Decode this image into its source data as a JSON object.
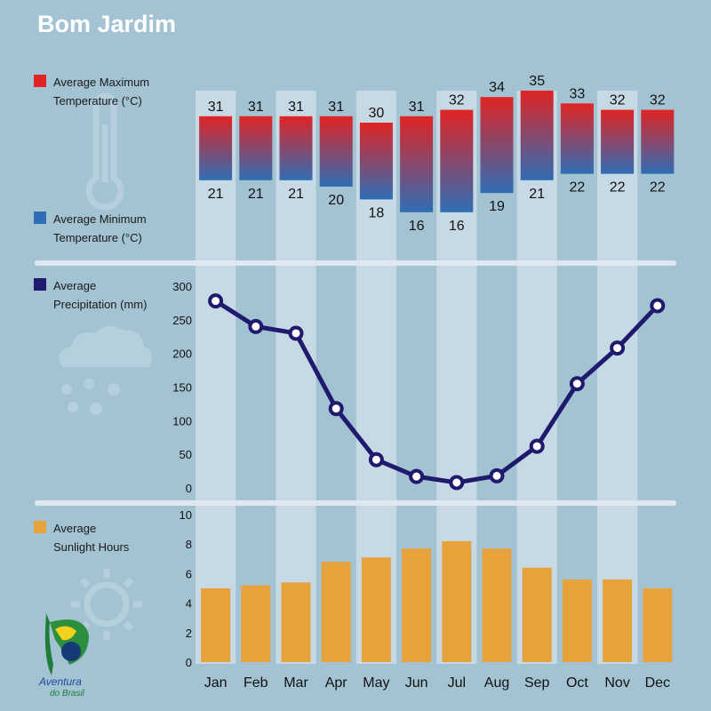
{
  "title": "Bom Jardim",
  "legend": {
    "max_label_1": "Average Maximum",
    "max_label_2": "Temperature (°C)",
    "min_label_1": "Average Minimum",
    "min_label_2": "Temperature (°C)",
    "precip_label_1": "Average",
    "precip_label_2": "Precipitation (mm)",
    "sun_label_1": "Average",
    "sun_label_2": "Sunlight Hours"
  },
  "logo": {
    "line1": "Aventura",
    "line2": "do Brasil"
  },
  "colors": {
    "background": "#a3c3d3",
    "column_band": "#c7d9e4",
    "max_temp": "#e02424",
    "min_temp": "#2f6db5",
    "precipitation": "#1f1a6e",
    "sunlight": "#e8a23c",
    "divider": "#dfe8ee"
  },
  "chart_data": [
    {
      "type": "bar",
      "title": "",
      "categories": [
        "Jan",
        "Feb",
        "Mar",
        "Apr",
        "May",
        "Jun",
        "Jul",
        "Aug",
        "Sep",
        "Oct",
        "Nov",
        "Dec"
      ],
      "series": [
        {
          "name": "Average Maximum Temperature (°C)",
          "values": [
            31,
            31,
            31,
            31,
            30,
            31,
            32,
            34,
            35,
            33,
            32,
            32
          ]
        },
        {
          "name": "Average Minimum Temperature (°C)",
          "values": [
            21,
            21,
            21,
            20,
            18,
            16,
            16,
            19,
            21,
            22,
            22,
            22
          ]
        }
      ],
      "ylim": [
        15,
        35
      ]
    },
    {
      "type": "line",
      "title": "",
      "categories": [
        "Jan",
        "Feb",
        "Mar",
        "Apr",
        "May",
        "Jun",
        "Jul",
        "Aug",
        "Sep",
        "Oct",
        "Nov",
        "Dec"
      ],
      "series": [
        {
          "name": "Average Precipitation (mm)",
          "values": [
            278,
            240,
            230,
            118,
            42,
            17,
            8,
            18,
            62,
            155,
            208,
            271
          ]
        }
      ],
      "ylim": [
        0,
        300
      ],
      "yticks": [
        0,
        50,
        100,
        150,
        200,
        250,
        300
      ],
      "grid": false
    },
    {
      "type": "bar",
      "title": "",
      "categories": [
        "Jan",
        "Feb",
        "Mar",
        "Apr",
        "May",
        "Jun",
        "Jul",
        "Aug",
        "Sep",
        "Oct",
        "Nov",
        "Dec"
      ],
      "series": [
        {
          "name": "Average Sunlight Hours",
          "values": [
            5.0,
            5.2,
            5.4,
            6.8,
            7.1,
            7.7,
            8.2,
            7.7,
            6.4,
            5.6,
            5.6,
            5.0
          ]
        }
      ],
      "ylim": [
        0,
        10
      ],
      "yticks": [
        0,
        2,
        4,
        6,
        8,
        10
      ]
    }
  ]
}
